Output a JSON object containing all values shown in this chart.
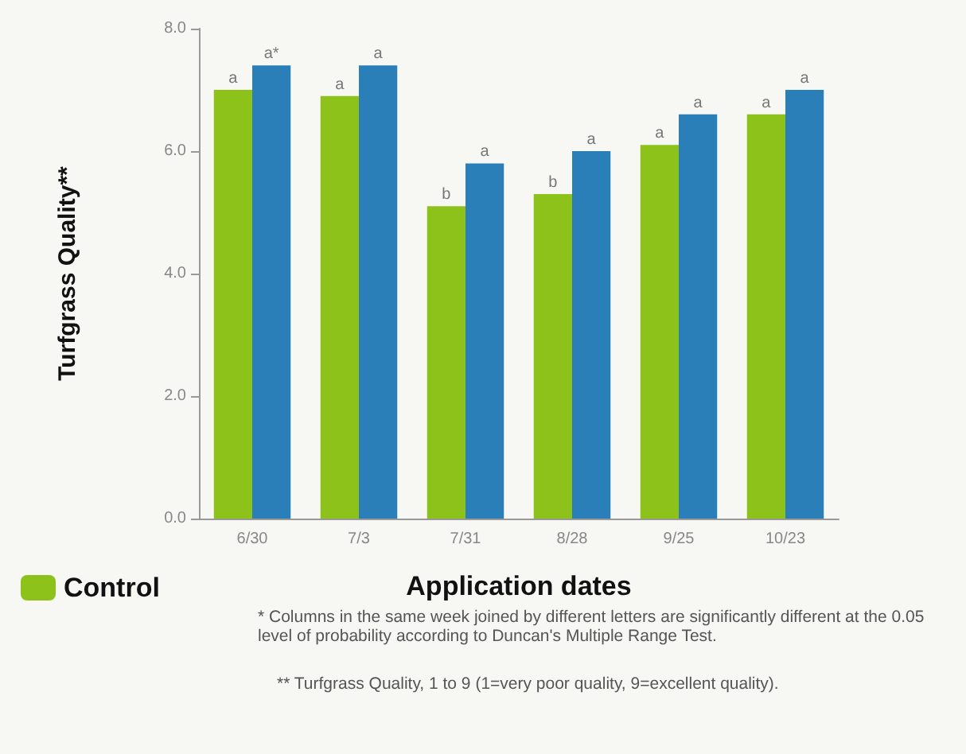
{
  "chart_data": {
    "type": "bar",
    "xlabel": "Application dates",
    "ylabel": "Turfgrass Quality**",
    "categories": [
      "6/30",
      "7/3",
      "7/31",
      "8/28",
      "9/25",
      "10/23"
    ],
    "series": [
      {
        "name": "Control",
        "color": "#8cc21a",
        "values": [
          7.0,
          6.9,
          5.1,
          5.3,
          6.1,
          6.6
        ],
        "value_labels": [
          "a",
          "a",
          "b",
          "b",
          "a",
          "a"
        ]
      },
      {
        "color": "#2b7fb8",
        "values": [
          7.4,
          7.4,
          5.8,
          6.0,
          6.6,
          7.0
        ],
        "value_labels": [
          "a*",
          "a",
          "a",
          "a",
          "a",
          "a"
        ]
      }
    ],
    "ylim": [
      0,
      8
    ],
    "yticks": [
      {
        "value": 0,
        "label": "0.0"
      },
      {
        "value": 2,
        "label": "2.0"
      },
      {
        "value": 4,
        "label": "4.0"
      },
      {
        "value": 6,
        "label": "6.0"
      },
      {
        "value": 8,
        "label": "8.0"
      }
    ],
    "grid": false,
    "legend": "bottom left",
    "annotations": [
      "* Columns in the same week joined by different letters are significantly different at the 0.05 level of probability according to Duncan's Multiple Range Test.",
      "** Turfgrass Quality, 1 to 9 (1=very poor quality, 9=excellent quality)."
    ]
  }
}
